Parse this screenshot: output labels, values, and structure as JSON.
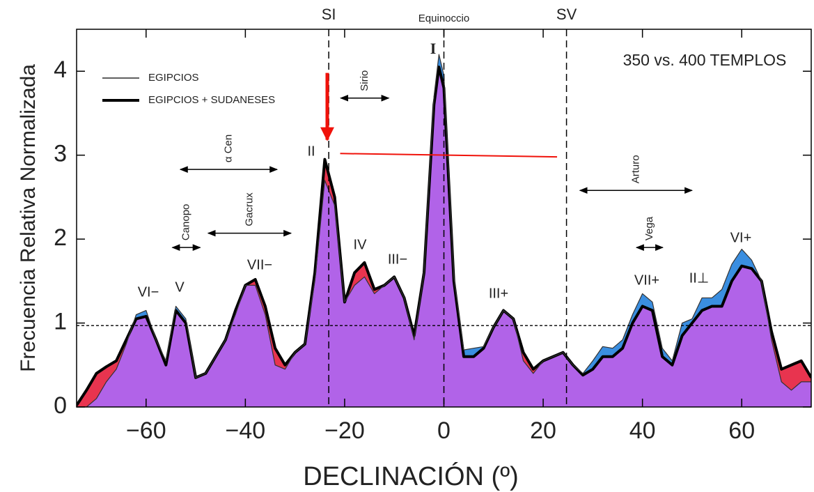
{
  "chart_data": {
    "type": "area",
    "xlabel": "DECLINACIÓN (º)",
    "ylabel": "Frecuencia Relativa Normalizada",
    "xlim": [
      -74,
      74
    ],
    "ylim": [
      0,
      4.5
    ],
    "xticks": [
      {
        "value": -60,
        "label": "−60"
      },
      {
        "value": -40,
        "label": "−40"
      },
      {
        "value": -20,
        "label": "−20"
      },
      0,
      20,
      40,
      60
    ],
    "yticks": [
      0,
      1,
      2,
      3,
      4
    ],
    "x": [
      -74,
      -72,
      -70,
      -68,
      -66,
      -64,
      -62,
      -60,
      -58,
      -56,
      -54,
      -52,
      -50,
      -48,
      -46,
      -44,
      -42,
      -40,
      -38,
      -36,
      -34,
      -32,
      -30,
      -28,
      -26,
      -24,
      -22,
      -20,
      -18,
      -16,
      -14,
      -12,
      -10,
      -8,
      -6,
      -4,
      -2,
      -1,
      0,
      2,
      4,
      6,
      8,
      10,
      12,
      14,
      16,
      18,
      20,
      22,
      24,
      26,
      28,
      30,
      32,
      34,
      36,
      38,
      40,
      42,
      44,
      46,
      48,
      50,
      52,
      54,
      56,
      58,
      60,
      62,
      64,
      66,
      68,
      70,
      72,
      74
    ],
    "series": [
      {
        "name": "EGIPCIOS",
        "color": "#3a8ee0",
        "line_width": 1.2,
        "values": [
          0,
          0,
          0.1,
          0.3,
          0.45,
          0.75,
          1.1,
          1.15,
          0.8,
          0.55,
          1.2,
          1.05,
          0.35,
          0.4,
          0.6,
          0.8,
          1.1,
          1.45,
          1.45,
          1.1,
          0.5,
          0.45,
          0.65,
          0.75,
          1.5,
          2.7,
          2.4,
          1.25,
          1.45,
          1.55,
          1.35,
          1.45,
          1.55,
          1.3,
          0.8,
          1.6,
          3.7,
          4.2,
          3.95,
          1.55,
          0.68,
          0.7,
          0.72,
          0.95,
          1.15,
          1.05,
          0.55,
          0.4,
          0.55,
          0.6,
          0.65,
          0.5,
          0.4,
          0.55,
          0.72,
          0.7,
          0.8,
          1.1,
          1.35,
          1.25,
          0.7,
          0.55,
          1.0,
          1.05,
          1.3,
          1.3,
          1.4,
          1.7,
          1.88,
          1.75,
          1.5,
          0.8,
          0.3,
          0.2,
          0.3,
          0.3
        ]
      },
      {
        "name": "EGIPCIOS + SUDANESES",
        "color": "#e8344f",
        "line_width": 4,
        "values": [
          0.02,
          0.2,
          0.4,
          0.48,
          0.55,
          0.8,
          1.05,
          1.08,
          0.8,
          0.5,
          1.15,
          1.0,
          0.35,
          0.4,
          0.6,
          0.8,
          1.15,
          1.45,
          1.52,
          1.2,
          0.7,
          0.5,
          0.65,
          0.75,
          1.6,
          2.95,
          2.5,
          1.25,
          1.6,
          1.72,
          1.4,
          1.45,
          1.55,
          1.3,
          0.85,
          1.6,
          3.6,
          4.05,
          3.8,
          1.5,
          0.6,
          0.6,
          0.7,
          0.95,
          1.15,
          1.05,
          0.65,
          0.45,
          0.55,
          0.6,
          0.65,
          0.5,
          0.38,
          0.45,
          0.6,
          0.6,
          0.7,
          1.0,
          1.2,
          1.15,
          0.6,
          0.5,
          0.85,
          1.0,
          1.15,
          1.2,
          1.2,
          1.5,
          1.68,
          1.65,
          1.5,
          0.9,
          0.45,
          0.5,
          0.55,
          0.35
        ]
      }
    ],
    "overlap_color": "#b163e8",
    "note": "350 vs. 400 TEMPLOS",
    "hline": 0.97,
    "vlines": [
      {
        "label": "SI",
        "x": -23.2
      },
      {
        "label": "Equinoccio",
        "x": 0
      },
      {
        "label": "SV",
        "x": 24.7
      }
    ],
    "peak_labels": [
      "VI−",
      "V",
      "VII−",
      "II",
      "IV",
      "III−",
      "I",
      "III+",
      "VII+",
      "II⊥",
      "VI+"
    ],
    "star_ranges": [
      {
        "label": "α Cen",
        "range": [
          -53.1,
          -33.6
        ],
        "y": 2.83
      },
      {
        "label": "Sirio",
        "range": [
          -20.8,
          -11.1
        ],
        "y": 3.68
      },
      {
        "label": "Canopo",
        "range": [
          -54.7,
          -49.1
        ],
        "y": 1.9
      },
      {
        "label": "Gacrux",
        "range": [
          -47.5,
          -30.8
        ],
        "y": 2.07
      },
      {
        "label": "Arturo",
        "range": [
          27.4,
          50
        ],
        "y": 2.58
      },
      {
        "label": "Vega",
        "range": [
          38.8,
          44.1
        ],
        "y": 1.9
      }
    ],
    "red_line": {
      "x": [
        -20.9,
        22.8
      ],
      "y": [
        3.02,
        2.98
      ]
    },
    "red_arrow": {
      "x": -23.5,
      "y": [
        3.98,
        3.1
      ]
    }
  }
}
